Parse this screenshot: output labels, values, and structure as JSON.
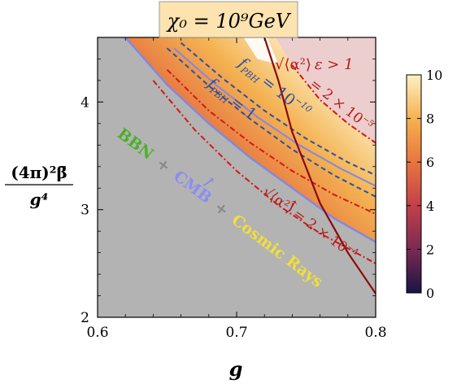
{
  "chart_data": {
    "type": "heatmap",
    "title": "χ₀ = 10⁹GeV",
    "xlabel": "g",
    "ylabel_numerator": "(4π)²β̄",
    "ylabel_denominator": "g⁴",
    "xlim": [
      0.6,
      0.8
    ],
    "ylim": [
      2.0,
      4.6
    ],
    "x_ticks": [
      0.6,
      0.7,
      0.8
    ],
    "x_tick_labels": [
      "0.6",
      "0.7",
      "0.8"
    ],
    "y_ticks": [
      2,
      3,
      4
    ],
    "y_tick_labels": [
      "2",
      "3",
      "4"
    ],
    "colorbar": {
      "range": [
        0,
        10
      ],
      "ticks": [
        0,
        2,
        4,
        6,
        8,
        10
      ],
      "tick_labels": [
        "0",
        "2",
        "4",
        "6",
        "8",
        "10"
      ],
      "colors": [
        "#1a1446",
        "#7a2a52",
        "#c2404a",
        "#e8763e",
        "#f6b24e",
        "#fdf0c4"
      ]
    },
    "regions": [
      {
        "label": "BBN + CMB + Cosmic Rays",
        "parts": [
          "BBN",
          "+",
          "CMB",
          "+",
          "Cosmic Rays"
        ],
        "colors": [
          "#4caf2a",
          "#888888",
          "#8c8cf2",
          "#888888",
          "#f2df3a"
        ],
        "fill": "#b3b3b3"
      },
      {
        "label": "√⟨α²⟩ ε > 1",
        "fill": "#eccbcf"
      }
    ],
    "contours": [
      {
        "name": "f_PBH = 10⁻¹⁰",
        "style": "dashed",
        "color": "#2a4fa6",
        "x": [
          0.66,
          0.69,
          0.72,
          0.75,
          0.78,
          0.8
        ],
        "y": [
          4.55,
          4.22,
          3.92,
          3.66,
          3.44,
          3.32
        ]
      },
      {
        "name": "f_PBH = 1",
        "style": "dashed",
        "color": "#2a4fa6",
        "x": [
          0.65,
          0.68,
          0.71,
          0.74,
          0.77,
          0.8
        ],
        "y": [
          4.5,
          4.15,
          3.84,
          3.56,
          3.32,
          3.12
        ]
      },
      {
        "name": "solid blue",
        "style": "solid",
        "color": "#7f88e6",
        "x": [
          0.655,
          0.685,
          0.715,
          0.745,
          0.775,
          0.8
        ],
        "y": [
          4.5,
          4.16,
          3.86,
          3.6,
          3.38,
          3.22
        ]
      },
      {
        "name": "√⟨α²⟩ = 2 × 10⁻⁵",
        "style": "dashdot",
        "color": "#d01818",
        "x": [
          0.74,
          0.76,
          0.78,
          0.8
        ],
        "y": [
          4.34,
          4.02,
          3.8,
          3.62
        ]
      },
      {
        "name": "√⟨α²⟩ = 2 × 10⁻⁴",
        "style": "dashdot",
        "color": "#d01818",
        "x": [
          0.65,
          0.68,
          0.71,
          0.74,
          0.77,
          0.8
        ],
        "y": [
          4.3,
          3.92,
          3.62,
          3.36,
          3.14,
          2.96
        ]
      },
      {
        "name": "lower dash-dot",
        "style": "dashdot",
        "color": "#d01818",
        "x": [
          0.64,
          0.67,
          0.7,
          0.73,
          0.76,
          0.8
        ],
        "y": [
          4.2,
          3.74,
          3.36,
          3.04,
          2.78,
          2.5
        ]
      },
      {
        "name": "dark red boundary",
        "style": "solid",
        "color": "#8b0a0a",
        "x": [
          0.72,
          0.73,
          0.74,
          0.76,
          0.78,
          0.8
        ],
        "y": [
          4.6,
          4.2,
          3.72,
          3.06,
          2.6,
          2.22
        ]
      }
    ],
    "annotations": [
      {
        "text_parts": [
          "f",
          "PBH",
          "= 10",
          "−10"
        ],
        "color": "#2a4fa6"
      },
      {
        "text_parts": [
          "f",
          "PBH",
          "= 1"
        ],
        "color": "#2a4fa6"
      },
      {
        "text_parts": [
          "√⟨α²⟩",
          "ε > 1"
        ],
        "color": "#b21a1a"
      },
      {
        "text_parts": [
          "= 2 × 10",
          "−5"
        ],
        "color": "#b21a1a"
      },
      {
        "text_parts": [
          "√⟨α²⟩",
          "= 2 × 10",
          "−4"
        ],
        "color": "#b21a1a"
      }
    ]
  }
}
